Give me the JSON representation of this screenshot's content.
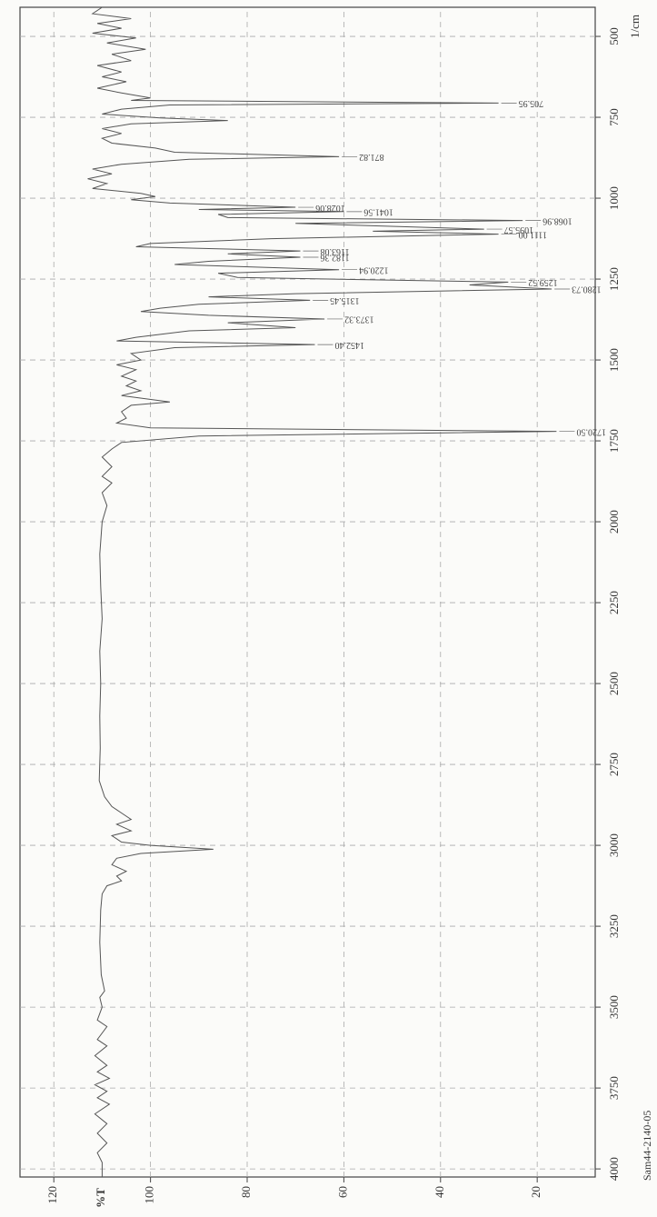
{
  "chart_data": {
    "type": "line",
    "x_label": "1/cm",
    "y_label": "%T",
    "sample": "Sam44-2140-05",
    "xlim": [
      4025,
      410
    ],
    "ylim": [
      8,
      127
    ],
    "xticks": [
      500,
      750,
      1000,
      1250,
      1500,
      1750,
      2000,
      2250,
      2500,
      2750,
      3000,
      3250,
      3500,
      3750,
      4000
    ],
    "yticks": [
      20,
      40,
      60,
      80,
      100,
      120
    ],
    "grid": true,
    "color": "#555555",
    "x": [
      410,
      430,
      445,
      460,
      475,
      490,
      505,
      520,
      540,
      555,
      575,
      590,
      610,
      625,
      640,
      660,
      675,
      690,
      698,
      705.95,
      712,
      725,
      740,
      752,
      760,
      770,
      785,
      800,
      815,
      830,
      845,
      858,
      871.82,
      880,
      895,
      910,
      925,
      940,
      955,
      970,
      985,
      995,
      1005,
      1015,
      1028.06,
      1035,
      1041.56,
      1050,
      1060,
      1068.96,
      1078,
      1095.57,
      1102,
      1111,
      1125,
      1140,
      1150,
      1163.08,
      1172,
      1182.36,
      1195,
      1205,
      1220.94,
      1232,
      1245,
      1259.52,
      1268,
      1280.73,
      1295,
      1305,
      1315.45,
      1328,
      1340,
      1350,
      1362,
      1373.32,
      1385,
      1400,
      1410,
      1430,
      1441,
      1452.4,
      1462,
      1480,
      1500,
      1515,
      1530,
      1550,
      1565,
      1580,
      1595,
      1610,
      1630,
      1640,
      1660,
      1680,
      1695,
      1710,
      1720.5,
      1735,
      1755,
      1775,
      1800,
      1830,
      1860,
      1880,
      1910,
      1950,
      2000,
      2100,
      2200,
      2300,
      2400,
      2500,
      2600,
      2700,
      2800,
      2850,
      2880,
      2900,
      2920,
      2935,
      2955,
      2970,
      2990,
      3000,
      3012,
      3025,
      3040,
      3060,
      3080,
      3095,
      3110,
      3125,
      3150,
      3200,
      3300,
      3400,
      3450,
      3470,
      3500,
      3540,
      3560,
      3600,
      3620,
      3650,
      3680,
      3700,
      3720,
      3740,
      3760,
      3780,
      3800,
      3830,
      3860,
      3890,
      3920,
      3950,
      3980,
      4025
    ],
    "values": [
      110,
      112,
      104,
      111,
      106,
      112,
      103,
      109,
      101,
      108,
      104,
      111,
      106,
      110,
      105,
      111,
      106,
      100,
      104,
      28,
      96,
      106,
      110,
      98,
      84,
      104,
      110,
      106,
      110,
      108,
      99,
      95,
      61,
      92,
      106,
      112,
      108,
      113,
      109,
      112,
      102,
      99,
      104,
      96,
      70,
      90,
      60,
      86,
      84,
      23,
      70,
      31,
      54,
      28,
      75,
      100,
      103,
      69,
      84,
      69,
      88,
      95,
      61,
      86,
      82,
      26,
      34,
      17,
      70,
      88,
      67,
      90,
      98,
      102,
      88,
      64,
      84,
      70,
      92,
      103,
      107,
      66,
      95,
      104,
      102,
      107,
      103,
      106,
      103,
      105,
      102,
      106,
      96,
      104,
      106,
      105,
      107,
      100,
      16,
      90,
      106,
      108,
      110,
      108,
      110,
      108,
      110,
      109,
      110,
      110.5,
      110.3,
      110,
      110.5,
      110.3,
      110.5,
      110.4,
      110.6,
      109.5,
      108,
      106,
      104,
      107,
      104,
      108,
      106,
      100,
      87,
      102,
      107,
      108,
      105,
      107,
      106,
      109,
      110,
      110.3,
      110.5,
      110.2,
      109.5,
      110.5,
      110,
      111,
      109,
      111,
      109,
      111.5,
      109,
      111,
      108.5,
      111.5,
      109,
      111,
      108.5,
      111.5,
      109,
      111,
      109,
      111,
      110,
      110
    ],
    "peaks": [
      {
        "value": 705.95,
        "label": "705.95"
      },
      {
        "value": 871.82,
        "label": "871.82"
      },
      {
        "value": 1028.06,
        "label": "1028.06"
      },
      {
        "value": 1041.56,
        "label": "1041.56"
      },
      {
        "value": 1068.96,
        "label": "1068.96"
      },
      {
        "value": 1095.57,
        "label": "1095.57"
      },
      {
        "value": 1111.0,
        "label": "1111.00"
      },
      {
        "value": 1163.08,
        "label": "1163.08"
      },
      {
        "value": 1182.36,
        "label": "1182.36"
      },
      {
        "value": 1220.94,
        "label": "1220.94"
      },
      {
        "value": 1259.52,
        "label": "1259.52"
      },
      {
        "value": 1280.73,
        "label": "1280.73"
      },
      {
        "value": 1315.45,
        "label": "1315.45"
      },
      {
        "value": 1373.32,
        "label": "1373.32"
      },
      {
        "value": 1452.4,
        "label": "1452.40"
      },
      {
        "value": 1720.5,
        "label": "1720.50"
      }
    ]
  }
}
